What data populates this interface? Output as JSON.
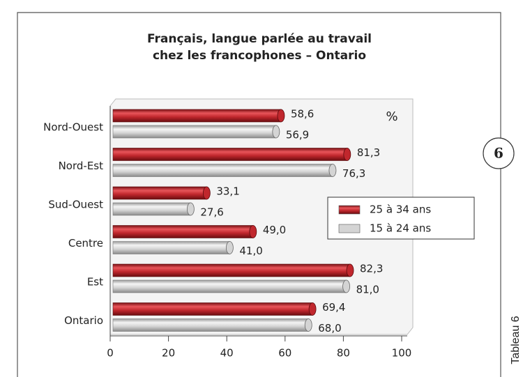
{
  "chart_data": {
    "type": "bar",
    "orientation": "horizontal",
    "title": [
      "Français, langue parlée au travail",
      "chez les francophones – Ontario"
    ],
    "unit": "%",
    "categories": [
      "Nord-Ouest",
      "Nord-Est",
      "Sud-Ouest",
      "Centre",
      "Est",
      "Ontario"
    ],
    "series": [
      {
        "name": "25 à 34 ans",
        "color": "#c0272d",
        "values": [
          58.6,
          81.3,
          33.1,
          49.0,
          82.3,
          69.4
        ],
        "value_labels": [
          "58,6",
          "81,3",
          "33,1",
          "49,0",
          "82,3",
          "69,4"
        ]
      },
      {
        "name": "15 à 24 ans",
        "color": "#d4d4d4",
        "values": [
          56.9,
          76.3,
          27.6,
          41.0,
          81.0,
          68.0
        ],
        "value_labels": [
          "56,9",
          "76,3",
          "27,6",
          "41,0",
          "81,0",
          "68,0"
        ]
      }
    ],
    "xlim": [
      0,
      100
    ],
    "xticks": [
      0,
      20,
      40,
      60,
      80,
      100
    ],
    "badge": "6",
    "side_label": "Tableau 6"
  }
}
